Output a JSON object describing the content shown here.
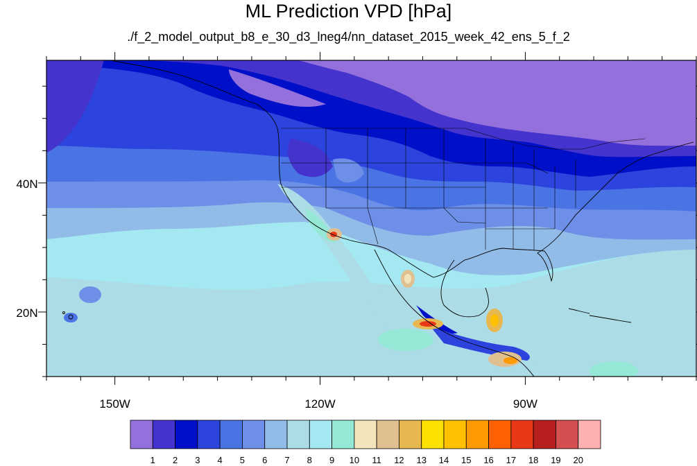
{
  "title": "ML Prediction VPD [hPa]",
  "subtitle": "./f_2_model_output_b8_e_30_d3_lneg4/nn_dataset_2015_week_42_ens_5_f_2",
  "map": {
    "lon_range": [
      -160,
      -65
    ],
    "lat_range": [
      10,
      59
    ],
    "lon_ticks": [
      {
        "value": -150,
        "label": "150W"
      },
      {
        "value": -120,
        "label": "120W"
      },
      {
        "value": -90,
        "label": "90W"
      }
    ],
    "lat_ticks": [
      {
        "value": 40,
        "label": "40N"
      },
      {
        "value": 20,
        "label": "20N"
      }
    ]
  },
  "colorbar": {
    "colors": [
      "#9370db",
      "#4433cc",
      "#0010c8",
      "#2c44dd",
      "#4a74e4",
      "#6d8fe8",
      "#92bce8",
      "#acdce6",
      "#a4e8f2",
      "#96e8d6",
      "#f4e4bc",
      "#e0c090",
      "#e8b850",
      "#fce000",
      "#ffc000",
      "#ff9a00",
      "#ff6000",
      "#e83818",
      "#b82020",
      "#d45050",
      "#ffb0b0"
    ],
    "labels": [
      "1",
      "2",
      "3",
      "4",
      "5",
      "6",
      "7",
      "8",
      "9",
      "10",
      "11",
      "12",
      "13",
      "14",
      "15",
      "16",
      "17",
      "18",
      "19",
      "20"
    ]
  }
}
